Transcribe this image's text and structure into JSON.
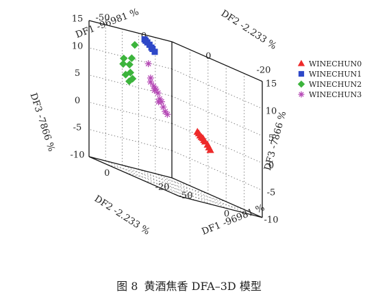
{
  "caption": {
    "figure_label": "图 8",
    "text": "黄酒焦香 DFA–3D 模型"
  },
  "colors": {
    "WINECHUN0": "#ee2a2a",
    "WINECHUN1": "#2e48c8",
    "WINECHUN2": "#3cb43c",
    "WINECHUN3": "#b548b5"
  },
  "chart_data": {
    "type": "scatter",
    "dimensions": 3,
    "grid": true,
    "legend_position": "right",
    "axes": {
      "x": {
        "label": "DF1 -96981 %",
        "ticks": [
          -50,
          0
        ],
        "range": [
          -70,
          40
        ]
      },
      "y": {
        "label": "DF2 -2.233 %",
        "ticks": [
          -20,
          0
        ],
        "range": [
          -22,
          8
        ]
      },
      "z": {
        "label": "DF3 -7866 %",
        "ticks": [
          -10,
          -5,
          0,
          5,
          10,
          15
        ],
        "range": [
          -10,
          15
        ]
      }
    },
    "series": [
      {
        "name": "WINECHUN0",
        "marker": "triangle",
        "points": [
          [
            -2,
            -11,
            1.5
          ],
          [
            -1,
            -11.2,
            1.3
          ],
          [
            0,
            -11.4,
            1.0
          ],
          [
            1,
            -11.6,
            0.8
          ],
          [
            2,
            -11.8,
            0.7
          ],
          [
            2,
            -12.2,
            0.4
          ],
          [
            3,
            -12.3,
            0.2
          ],
          [
            5,
            -12.6,
            -0.2
          ],
          [
            6,
            -12.8,
            -0.6
          ],
          [
            7,
            -13,
            -1
          ]
        ]
      },
      {
        "name": "WINECHUN1",
        "marker": "square",
        "points": [
          [
            -32,
            -0.8,
            15.2
          ],
          [
            -32,
            -1.2,
            15.0
          ],
          [
            -31,
            -1.5,
            14.8
          ],
          [
            -30,
            -2,
            14.5
          ],
          [
            -29,
            -2.4,
            14.1
          ],
          [
            -29,
            -2.8,
            13.9
          ],
          [
            -28,
            -3.3,
            13.5
          ]
        ]
      },
      {
        "name": "WINECHUN2",
        "marker": "diamond",
        "points": [
          [
            -58,
            -5,
            13
          ],
          [
            -55,
            -3,
            10.5
          ],
          [
            -58,
            -1,
            10
          ],
          [
            -56,
            -2.5,
            9.2
          ],
          [
            -57,
            -0.5,
            9
          ],
          [
            -55,
            -2.5,
            7.8
          ],
          [
            -55,
            -0.8,
            7.2
          ],
          [
            -54,
            -3,
            6.8
          ],
          [
            -53,
            -1.5,
            6.2
          ]
        ]
      },
      {
        "name": "WINECHUN3",
        "marker": "star",
        "points": [
          [
            -65,
            -12,
            10
          ],
          [
            -64,
            -12.5,
            7.5
          ],
          [
            -63,
            -12.2,
            6.8
          ],
          [
            -62,
            -13,
            6.2
          ],
          [
            -61,
            -13.5,
            5.8
          ],
          [
            -60,
            -14,
            5.2
          ],
          [
            -60,
            -14.6,
            4.2
          ],
          [
            -59,
            -15,
            3.8
          ],
          [
            -59,
            -15.6,
            2.9
          ],
          [
            -58,
            -16,
            2.2
          ],
          [
            -57,
            -16.5,
            1.8
          ],
          [
            -61,
            -13,
            5.5
          ],
          [
            -60,
            -14.2,
            3.6
          ]
        ]
      }
    ]
  }
}
